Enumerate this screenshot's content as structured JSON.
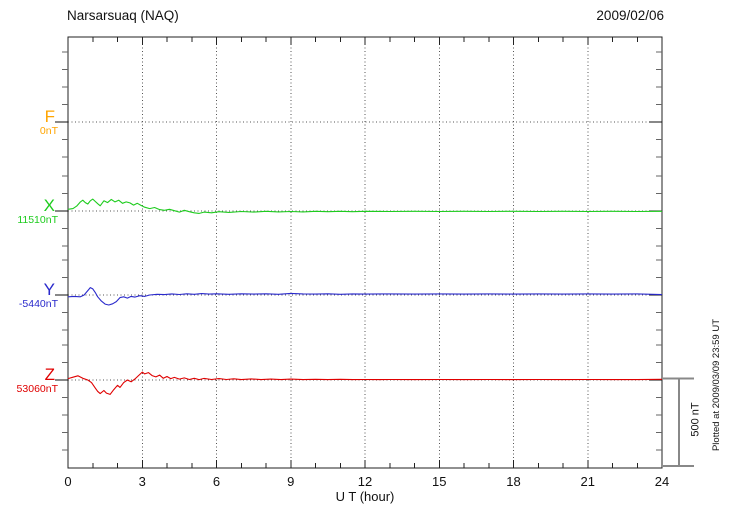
{
  "title": "Narsarsuaq (NAQ)",
  "date": "2009/02/06",
  "footer_note": "Plotted at 2009/03/09 23:59 UT",
  "scale_bar": {
    "label": "500 nT",
    "nT": 500
  },
  "xaxis": {
    "label": "U T (hour)",
    "major_ticks": [
      0,
      3,
      6,
      9,
      12,
      15,
      18,
      21,
      24
    ],
    "minor_step_hours": 1,
    "range": [
      0,
      24
    ]
  },
  "components": [
    {
      "name": "F",
      "baseline_label": "0nT",
      "color": "#FFA500"
    },
    {
      "name": "X",
      "baseline_label": "11510nT",
      "color": "#1ECC1E"
    },
    {
      "name": "Y",
      "baseline_label": "-5440nT",
      "color": "#2A2ACC"
    },
    {
      "name": "Z",
      "baseline_label": "53060nT",
      "color": "#E00000"
    }
  ],
  "chart_data": {
    "type": "line",
    "title": "Narsarsuaq (NAQ) magnetogram",
    "subtitle": "2009/02/06",
    "xlabel": "U T (hour)",
    "x_range": [
      0,
      24
    ],
    "grid": "dotted baselines and 3-hour verticals",
    "scale_nT_per_division": 100,
    "scale_bar_nT": 500,
    "series": [
      {
        "name": "F",
        "baseline_nT": 0,
        "points": []
      },
      {
        "name": "X",
        "baseline_nT": 11510,
        "points": [
          [
            0,
            10
          ],
          [
            0.2,
            14
          ],
          [
            0.35,
            28
          ],
          [
            0.5,
            52
          ],
          [
            0.6,
            62
          ],
          [
            0.7,
            48
          ],
          [
            0.8,
            40
          ],
          [
            0.9,
            58
          ],
          [
            1.0,
            68
          ],
          [
            1.1,
            55
          ],
          [
            1.2,
            42
          ],
          [
            1.3,
            30
          ],
          [
            1.45,
            58
          ],
          [
            1.6,
            48
          ],
          [
            1.75,
            66
          ],
          [
            1.9,
            52
          ],
          [
            2.05,
            62
          ],
          [
            2.2,
            44
          ],
          [
            2.35,
            52
          ],
          [
            2.5,
            46
          ],
          [
            2.65,
            34
          ],
          [
            2.8,
            44
          ],
          [
            2.95,
            32
          ],
          [
            3.1,
            22
          ],
          [
            3.3,
            14
          ],
          [
            3.5,
            20
          ],
          [
            3.7,
            8
          ],
          [
            3.9,
            4
          ],
          [
            4.1,
            10
          ],
          [
            4.3,
            2
          ],
          [
            4.5,
            -6
          ],
          [
            4.7,
            4
          ],
          [
            4.9,
            -4
          ],
          [
            5.1,
            -10
          ],
          [
            5.3,
            -14
          ],
          [
            5.5,
            -6
          ],
          [
            5.8,
            -10
          ],
          [
            6.1,
            -4
          ],
          [
            6.5,
            -8
          ],
          [
            7,
            -3
          ],
          [
            7.5,
            -6
          ],
          [
            8,
            -2
          ],
          [
            8.5,
            -5
          ],
          [
            9,
            -3
          ],
          [
            9.5,
            -5
          ],
          [
            10,
            -2
          ],
          [
            10.5,
            -4
          ],
          [
            11,
            -2
          ],
          [
            11.5,
            -4
          ],
          [
            12,
            -2
          ],
          [
            13,
            -3
          ],
          [
            14,
            -2
          ],
          [
            15,
            -3
          ],
          [
            16,
            -2
          ],
          [
            17,
            -3
          ],
          [
            18,
            -2
          ],
          [
            19,
            -3
          ],
          [
            20,
            -2
          ],
          [
            21,
            -3
          ],
          [
            22,
            -2
          ],
          [
            23,
            -3
          ],
          [
            24,
            -2
          ]
        ]
      },
      {
        "name": "Y",
        "baseline_nT": -5440,
        "points": [
          [
            0,
            -10
          ],
          [
            0.25,
            -8
          ],
          [
            0.5,
            -10
          ],
          [
            0.65,
            0
          ],
          [
            0.8,
            25
          ],
          [
            0.9,
            42
          ],
          [
            1.0,
            35
          ],
          [
            1.1,
            15
          ],
          [
            1.2,
            -10
          ],
          [
            1.35,
            -35
          ],
          [
            1.5,
            -52
          ],
          [
            1.65,
            -57
          ],
          [
            1.8,
            -50
          ],
          [
            1.95,
            -38
          ],
          [
            2.1,
            -15
          ],
          [
            2.25,
            -10
          ],
          [
            2.4,
            -18
          ],
          [
            2.55,
            -8
          ],
          [
            2.7,
            -12
          ],
          [
            2.9,
            -4
          ],
          [
            3.1,
            -8
          ],
          [
            3.3,
            0
          ],
          [
            3.6,
            4
          ],
          [
            3.9,
            2
          ],
          [
            4.2,
            6
          ],
          [
            4.5,
            3
          ],
          [
            4.8,
            7
          ],
          [
            5.1,
            4
          ],
          [
            5.4,
            8
          ],
          [
            5.7,
            5
          ],
          [
            6,
            7
          ],
          [
            6.5,
            4
          ],
          [
            7,
            7
          ],
          [
            7.5,
            5
          ],
          [
            8,
            7
          ],
          [
            8.5,
            4
          ],
          [
            9,
            9
          ],
          [
            9.5,
            6
          ],
          [
            10,
            5
          ],
          [
            10.5,
            7
          ],
          [
            11,
            4
          ],
          [
            11.5,
            6
          ],
          [
            12,
            5
          ],
          [
            13,
            6
          ],
          [
            14,
            5
          ],
          [
            15,
            6
          ],
          [
            16,
            5
          ],
          [
            17,
            6
          ],
          [
            18,
            5
          ],
          [
            19,
            6
          ],
          [
            20,
            5
          ],
          [
            21,
            6
          ],
          [
            22,
            5
          ],
          [
            23,
            6
          ],
          [
            24,
            2
          ]
        ]
      },
      {
        "name": "Z",
        "baseline_nT": 53060,
        "points": [
          [
            0,
            8
          ],
          [
            0.2,
            16
          ],
          [
            0.4,
            24
          ],
          [
            0.6,
            10
          ],
          [
            0.8,
            0
          ],
          [
            0.95,
            -15
          ],
          [
            1.1,
            -45
          ],
          [
            1.2,
            -65
          ],
          [
            1.3,
            -78
          ],
          [
            1.45,
            -60
          ],
          [
            1.55,
            -75
          ],
          [
            1.7,
            -82
          ],
          [
            1.85,
            -55
          ],
          [
            2.0,
            -30
          ],
          [
            2.1,
            -42
          ],
          [
            2.25,
            -15
          ],
          [
            2.4,
            0
          ],
          [
            2.55,
            -10
          ],
          [
            2.7,
            5
          ],
          [
            2.85,
            25
          ],
          [
            3.0,
            45
          ],
          [
            3.1,
            35
          ],
          [
            3.25,
            42
          ],
          [
            3.4,
            25
          ],
          [
            3.55,
            18
          ],
          [
            3.7,
            28
          ],
          [
            3.85,
            10
          ],
          [
            4.0,
            20
          ],
          [
            4.15,
            8
          ],
          [
            4.3,
            15
          ],
          [
            4.5,
            5
          ],
          [
            4.7,
            12
          ],
          [
            4.9,
            3
          ],
          [
            5.1,
            10
          ],
          [
            5.3,
            2
          ],
          [
            5.5,
            9
          ],
          [
            5.8,
            3
          ],
          [
            6.1,
            8
          ],
          [
            6.4,
            3
          ],
          [
            6.7,
            7
          ],
          [
            7,
            2
          ],
          [
            7.4,
            6
          ],
          [
            7.8,
            2
          ],
          [
            8.2,
            5
          ],
          [
            8.6,
            2
          ],
          [
            9,
            5
          ],
          [
            9.5,
            2
          ],
          [
            10,
            4
          ],
          [
            10.5,
            2
          ],
          [
            11,
            4
          ],
          [
            11.5,
            2
          ],
          [
            12,
            3
          ],
          [
            12.5,
            2
          ],
          [
            13,
            3
          ],
          [
            14,
            2
          ],
          [
            15,
            3
          ],
          [
            16,
            2
          ],
          [
            17,
            3
          ],
          [
            18,
            2
          ],
          [
            19,
            3
          ],
          [
            20,
            2
          ],
          [
            21,
            3
          ],
          [
            22,
            2
          ],
          [
            23,
            2
          ],
          [
            24,
            4
          ]
        ]
      }
    ]
  }
}
